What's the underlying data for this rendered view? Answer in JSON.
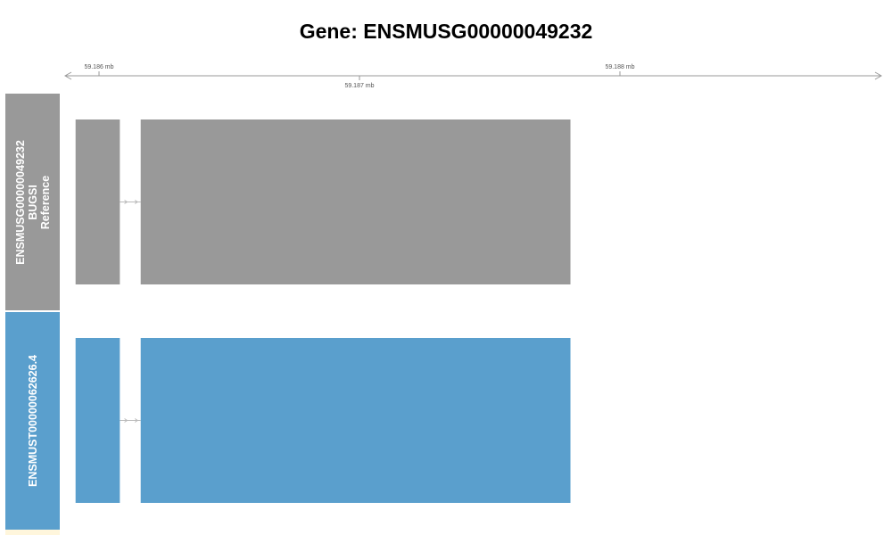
{
  "title": "Gene: ENSMUSG00000049232",
  "axis": {
    "ticks": [
      {
        "label": "59.186 mb",
        "pos": 59.186
      },
      {
        "label": "59.187 mb",
        "pos": 59.187
      },
      {
        "label": "59.188 mb",
        "pos": 59.188
      }
    ]
  },
  "tracks": [
    {
      "id": "reference",
      "label_lines": [
        "ENSMUSG00000049232",
        "BUGSI",
        "Reference"
      ],
      "color": "#999999",
      "exons": [
        {
          "start": 59.18591,
          "end": 59.18608
        },
        {
          "start": 59.18616,
          "end": 59.18781
        }
      ]
    },
    {
      "id": "transcript",
      "label_lines": [
        "ENSMUST00000062626.4"
      ],
      "color": "#5a9fcd",
      "exons": [
        {
          "start": 59.18591,
          "end": 59.18608
        },
        {
          "start": 59.18616,
          "end": 59.18781
        }
      ]
    }
  ],
  "colors": {
    "intron_line": "#bbbbbb",
    "axis_line": "#999999"
  }
}
